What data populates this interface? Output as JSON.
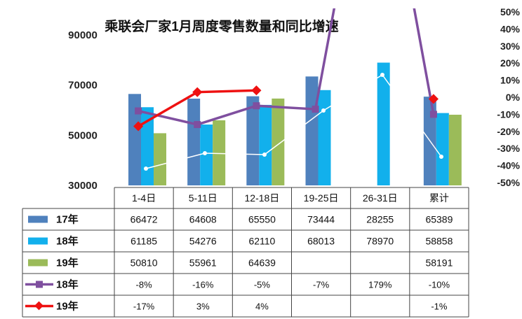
{
  "chart_data": {
    "type": "bar",
    "title": "乘联会厂家1月周度零售数量和同比增速",
    "categories": [
      "1-4日",
      "5-11日",
      "12-18日",
      "19-25日",
      "26-31日",
      "累计"
    ],
    "y_left": {
      "min": 30000,
      "max": 90000,
      "ticks": [
        "90000",
        "70000",
        "50000",
        "30000"
      ]
    },
    "y_right": {
      "min": -50,
      "max": 50,
      "ticks": [
        "50%",
        "40%",
        "30%",
        "20%",
        "10%",
        "0%",
        "-10%",
        "-20%",
        "-30%",
        "-40%",
        "-50%"
      ]
    },
    "series": [
      {
        "name": "17年",
        "kind": "bar",
        "color": "#4f81bd",
        "values": [
          66472,
          64608,
          65550,
          73444,
          28255,
          65389
        ],
        "labels": [
          "66472",
          "64608",
          "65550",
          "73444",
          "28255",
          "65389"
        ]
      },
      {
        "name": "18年",
        "kind": "bar",
        "color": "#12b0ec",
        "values": [
          61185,
          54276,
          62110,
          68013,
          78970,
          58858
        ],
        "labels": [
          "61185",
          "54276",
          "62110",
          "68013",
          "78970",
          "58858"
        ]
      },
      {
        "name": "19年",
        "kind": "bar",
        "color": "#9bbb59",
        "values": [
          50810,
          55961,
          64639,
          null,
          null,
          58191
        ],
        "labels": [
          "50810",
          "55961",
          "64639",
          "",
          "",
          "58191"
        ]
      },
      {
        "name": "18年",
        "kind": "line",
        "color": "#7f4f9f",
        "values": [
          -8,
          -16,
          -5,
          -7,
          179,
          -10
        ],
        "labels": [
          "-8%",
          "-16%",
          "-5%",
          "-7%",
          "179%",
          "-10%"
        ]
      },
      {
        "name": "19年",
        "kind": "line",
        "color": "#ee1111",
        "values": [
          -17,
          3,
          4,
          null,
          null,
          -1
        ],
        "labels": [
          "-17%",
          "3%",
          "4%",
          "",
          "",
          "-1%"
        ]
      }
    ]
  }
}
